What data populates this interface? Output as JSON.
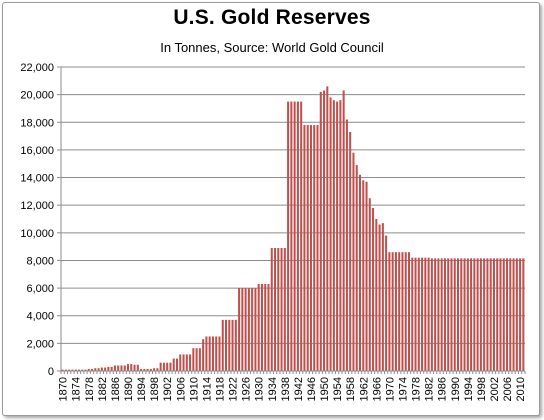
{
  "chart_data": {
    "type": "bar",
    "title": "U.S. Gold Reserves",
    "subtitle": "In Tonnes, Source: World Gold Council",
    "xlabel": "",
    "ylabel": "",
    "ylim": [
      0,
      22000
    ],
    "yticks": [
      "0",
      "2,000",
      "4,000",
      "6,000",
      "8,000",
      "10,000",
      "12,000",
      "14,000",
      "16,000",
      "18,000",
      "20,000",
      "22,000"
    ],
    "xticks": [
      "1870",
      "1874",
      "1878",
      "1882",
      "1886",
      "1890",
      "1894",
      "1898",
      "1902",
      "1906",
      "1910",
      "1914",
      "1918",
      "1922",
      "1926",
      "1930",
      "1934",
      "1938",
      "1942",
      "1946",
      "1950",
      "1954",
      "1958",
      "1962",
      "1966",
      "1970",
      "1974",
      "1978",
      "1982",
      "1986",
      "1990",
      "1994",
      "1998",
      "2002",
      "2006",
      "2010"
    ],
    "grid": true,
    "bar_color": "#c0504d",
    "categories": [
      1870,
      1871,
      1872,
      1873,
      1874,
      1875,
      1876,
      1877,
      1878,
      1879,
      1880,
      1881,
      1882,
      1883,
      1884,
      1885,
      1886,
      1887,
      1888,
      1889,
      1890,
      1891,
      1892,
      1893,
      1894,
      1895,
      1896,
      1897,
      1898,
      1899,
      1900,
      1901,
      1902,
      1903,
      1904,
      1905,
      1906,
      1907,
      1908,
      1909,
      1910,
      1911,
      1912,
      1913,
      1914,
      1915,
      1916,
      1917,
      1918,
      1919,
      1920,
      1921,
      1922,
      1923,
      1924,
      1925,
      1926,
      1927,
      1928,
      1929,
      1930,
      1931,
      1932,
      1933,
      1934,
      1935,
      1936,
      1937,
      1938,
      1939,
      1940,
      1941,
      1942,
      1943,
      1944,
      1945,
      1946,
      1947,
      1948,
      1949,
      1950,
      1951,
      1952,
      1953,
      1954,
      1955,
      1956,
      1957,
      1958,
      1959,
      1960,
      1961,
      1962,
      1963,
      1964,
      1965,
      1966,
      1967,
      1968,
      1969,
      1970,
      1971,
      1972,
      1973,
      1974,
      1975,
      1976,
      1977,
      1978,
      1979,
      1980,
      1981,
      1982,
      1983,
      1984,
      1985,
      1986,
      1987,
      1988,
      1989,
      1990,
      1991,
      1992,
      1993,
      1994,
      1995,
      1996,
      1997,
      1998,
      1999,
      2000,
      2001,
      2002,
      2003,
      2004,
      2005,
      2006,
      2007,
      2008,
      2009,
      2010,
      2011
    ],
    "values": [
      100,
      100,
      100,
      100,
      100,
      100,
      100,
      100,
      150,
      150,
      200,
      200,
      250,
      250,
      300,
      300,
      400,
      400,
      400,
      400,
      500,
      500,
      450,
      450,
      150,
      150,
      150,
      150,
      200,
      200,
      600,
      600,
      600,
      600,
      900,
      900,
      1200,
      1200,
      1200,
      1200,
      1650,
      1650,
      1650,
      2300,
      2500,
      2500,
      2500,
      2500,
      2500,
      3700,
      3700,
      3700,
      3700,
      3700,
      6000,
      6000,
      6000,
      6000,
      6000,
      6000,
      6300,
      6300,
      6300,
      6300,
      8900,
      8900,
      8900,
      8900,
      8900,
      19500,
      19500,
      19500,
      19500,
      19500,
      17800,
      17800,
      17800,
      17800,
      17800,
      20200,
      20300,
      20600,
      19800,
      19600,
      19500,
      19600,
      20300,
      18200,
      17300,
      15800,
      14900,
      14200,
      13800,
      13700,
      12500,
      11800,
      11000,
      10600,
      10700,
      9800,
      8600,
      8600,
      8600,
      8600,
      8600,
      8600,
      8600,
      8200,
      8200,
      8200,
      8200,
      8200,
      8200,
      8150,
      8150,
      8150,
      8150,
      8150,
      8150,
      8150,
      8150,
      8150,
      8150,
      8150,
      8150,
      8150,
      8150,
      8150,
      8150,
      8150,
      8150,
      8150,
      8150,
      8150,
      8150,
      8150,
      8150,
      8150,
      8150,
      8150,
      8150,
      8150
    ]
  }
}
